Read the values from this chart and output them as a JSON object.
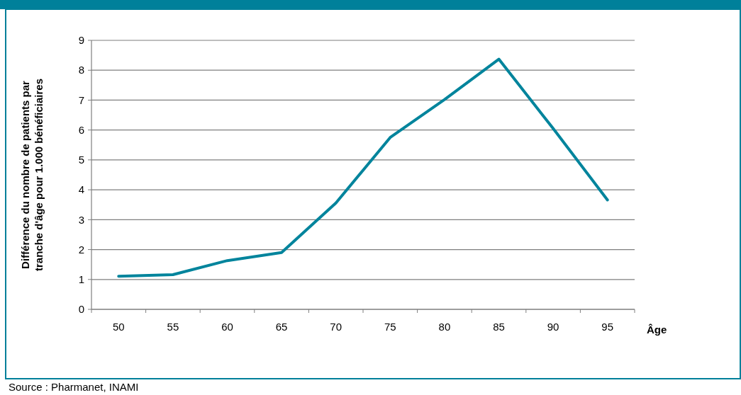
{
  "chart_data": {
    "type": "line",
    "xlabel": "Âge",
    "ylabel": "Différence du nombre de patients par tranche d'âge pour 1.000 bénéficiaires",
    "categories": [
      "50",
      "55",
      "60",
      "65",
      "70",
      "75",
      "80",
      "85",
      "90",
      "95"
    ],
    "series": [
      {
        "color": "#00849c",
        "values": [
          1.11,
          1.16,
          1.63,
          1.9,
          3.56,
          5.75,
          7.02,
          8.37,
          6.05,
          3.66
        ]
      }
    ],
    "ylim": [
      0,
      9
    ],
    "yticks": [
      0,
      1,
      2,
      3,
      4,
      5,
      6,
      7,
      8,
      9
    ],
    "grid": "y",
    "marker": "none",
    "line_style": "solid",
    "annotations": [
      "Source : Pharmanet, INAMI"
    ]
  }
}
